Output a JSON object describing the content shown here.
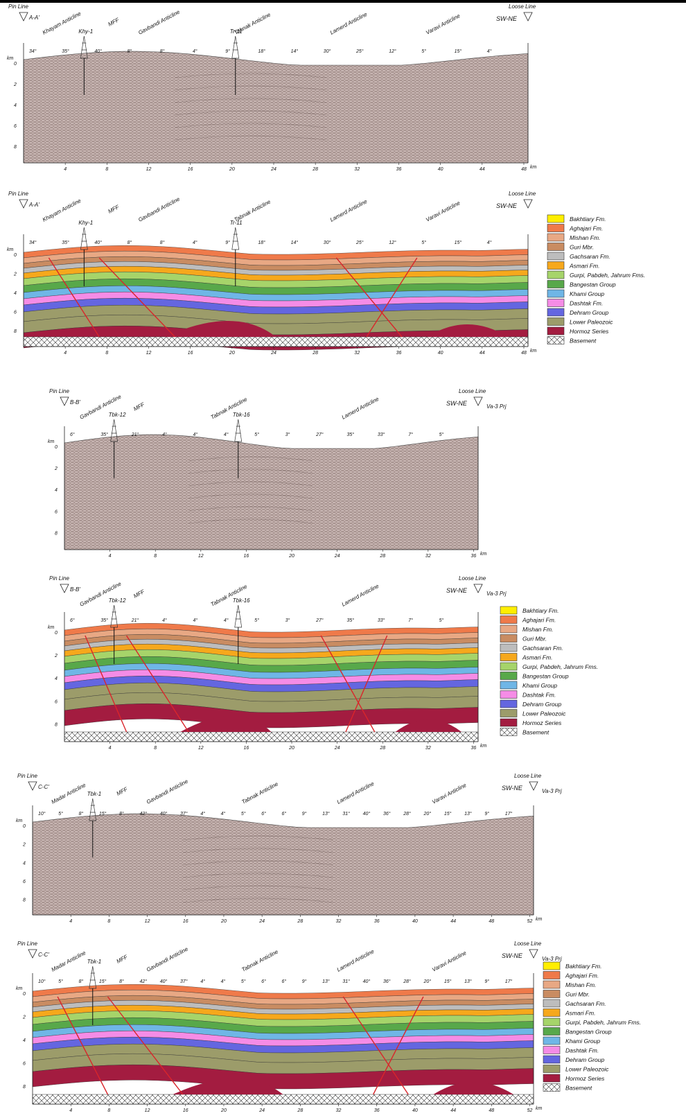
{
  "common": {
    "pin_line": "Pin Line",
    "loose_line": "Loose Line",
    "direction": "SW-NE",
    "km_unit": "km",
    "mff": "MFF",
    "depth_ticks": [
      "0",
      "2",
      "4",
      "6",
      "8"
    ]
  },
  "legend": [
    {
      "label": "Bakhtiary Fm.",
      "color": "#ffee00"
    },
    {
      "label": "Aghajari Fm.",
      "color": "#ef7a4a"
    },
    {
      "label": "Mishan Fm.",
      "color": "#e8a884"
    },
    {
      "label": "Guri Mbr.",
      "color": "#c98c62"
    },
    {
      "label": "Gachsaran Fm.",
      "color": "#bdbdbd"
    },
    {
      "label": "Asmari Fm.",
      "color": "#f6a81c"
    },
    {
      "label": "Gurpi, Pabdeh, Jahrum Fms.",
      "color": "#a6d46a"
    },
    {
      "label": "Bangestan Group",
      "color": "#58a84a"
    },
    {
      "label": "Khami Group",
      "color": "#6fb6e6"
    },
    {
      "label": "Dashtak Fm.",
      "color": "#f58ce6"
    },
    {
      "label": "Dehram Group",
      "color": "#6466e0"
    },
    {
      "label": "Lower Paleozoic",
      "color": "#9c9c6a"
    },
    {
      "label": "Hormoz Series",
      "color": "#a31c40"
    },
    {
      "label": "Basement",
      "color": "#ffffff"
    }
  ],
  "sections": [
    {
      "id": "A-A'",
      "anticlines": [
        "Khayam Anticline",
        "Gavbandi Anticline",
        "Tabnak Anticline",
        "Lamerd Anticline",
        "Varavi Anticline"
      ],
      "wells": [
        "Khy-1",
        "Tr-11"
      ],
      "dips": [
        "34°",
        "35°",
        "40°",
        "8°",
        "8°",
        "4°",
        "9°",
        "18°",
        "14°",
        "30°",
        "25°",
        "12°",
        "5°",
        "15°",
        "4°"
      ],
      "x_ticks": [
        "4",
        "8",
        "12",
        "16",
        "20",
        "24",
        "28",
        "32",
        "36",
        "40",
        "44",
        "48"
      ]
    },
    {
      "id": "B-B'",
      "anticlines": [
        "Gavbandi Anticline",
        "Tabnak Anticline",
        "Lamerd Anticline"
      ],
      "wells": [
        "Tbk-12",
        "Tbk-16"
      ],
      "extra_label": "Va-3 Prj",
      "dips": [
        "6°",
        "35°",
        "21°",
        "4°",
        "4°",
        "4°",
        "5°",
        "3°",
        "27°",
        "35°",
        "33°",
        "7°",
        "5°"
      ],
      "x_ticks": [
        "4",
        "8",
        "12",
        "16",
        "20",
        "24",
        "28",
        "32",
        "36"
      ]
    },
    {
      "id": "C-C'",
      "anticlines": [
        "Madar Anticline",
        "Gavbandi Anticline",
        "Tabnak Anticline",
        "Lamerd Anticline",
        "Varavi Anticline"
      ],
      "wells": [
        "Tbk-1"
      ],
      "extra_label": "Va-3 Prj",
      "dips": [
        "10°",
        "5°",
        "8°",
        "15°",
        "8°",
        "42°",
        "40°",
        "37°",
        "4°",
        "4°",
        "5°",
        "6°",
        "6°",
        "9°",
        "13°",
        "31°",
        "40°",
        "36°",
        "28°",
        "20°",
        "15°",
        "13°",
        "9°",
        "17°"
      ],
      "x_ticks": [
        "4",
        "8",
        "12",
        "16",
        "20",
        "24",
        "28",
        "32",
        "36",
        "40",
        "44",
        "48",
        "52"
      ]
    }
  ]
}
